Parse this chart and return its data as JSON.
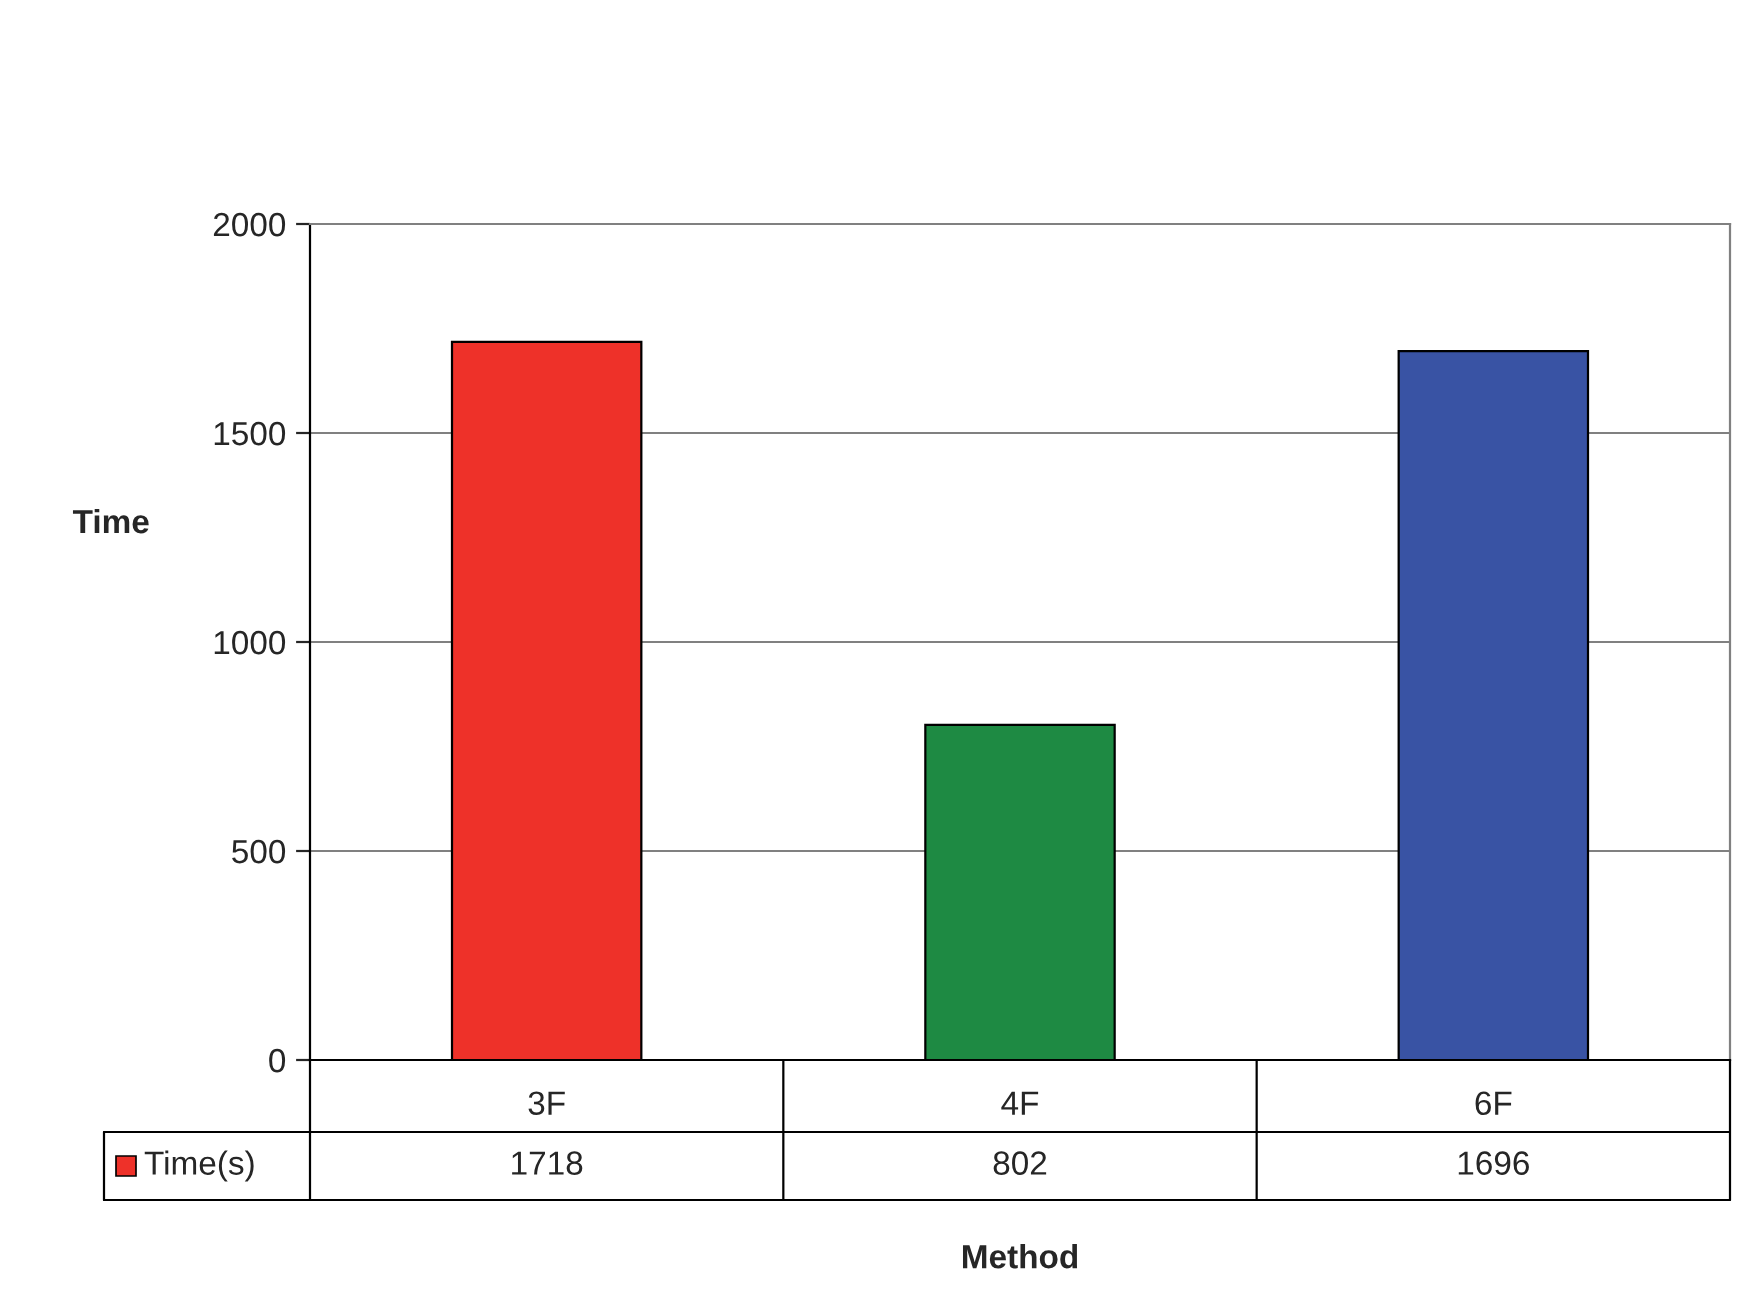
{
  "chart_data": {
    "type": "bar",
    "xlabel": "Method",
    "ylabel": "Time",
    "categories": [
      "3F",
      "4F",
      "6F"
    ],
    "series": [
      {
        "name": "Time(s)",
        "color": "#ee3129",
        "colors": [
          "#ee3129",
          "#1e8a43",
          "#3953a4"
        ],
        "values": [
          1718,
          802,
          1696
        ]
      }
    ],
    "ylim": [
      0,
      2000
    ],
    "yticks": [
      0,
      500,
      1000,
      1500,
      2000
    ],
    "grid": "y",
    "legend": "bottom left",
    "data_labels": true
  }
}
